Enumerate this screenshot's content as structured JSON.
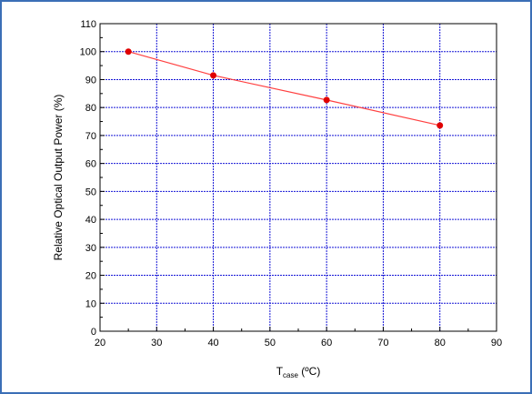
{
  "chart_data": {
    "type": "line",
    "title": "",
    "xlabel": {
      "main": "T",
      "subscript": "case",
      "unit": " (ºC)"
    },
    "ylabel": "Relative Optical Output Power (%)",
    "xlim": [
      20,
      90
    ],
    "ylim": [
      0,
      110
    ],
    "x_ticks": [
      20,
      30,
      40,
      50,
      60,
      70,
      80,
      90
    ],
    "y_ticks": [
      0,
      10,
      20,
      30,
      40,
      50,
      60,
      70,
      80,
      90,
      100,
      110
    ],
    "grid": true,
    "series": [
      {
        "x": [
          25,
          40,
          60,
          80
        ],
        "y": [
          100,
          91.5,
          82.7,
          73.6
        ]
      }
    ],
    "colors": {
      "grid": "#1515d6",
      "line": "#ff4040",
      "marker": "#e00000",
      "frame": "#3b6fb6"
    }
  }
}
